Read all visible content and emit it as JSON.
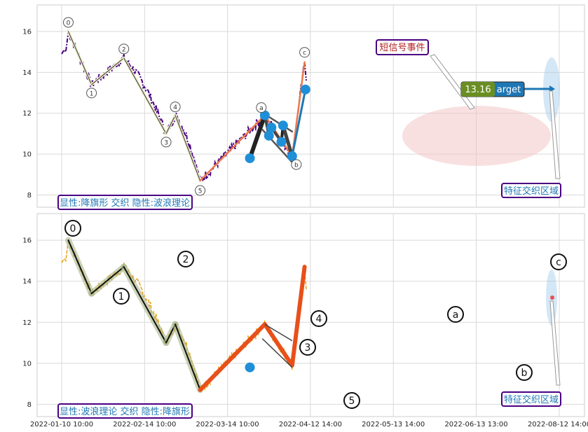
{
  "chart_data": {
    "type": "line",
    "x_ticks": [
      "2022-01-10 10:00",
      "2022-02-14 10:00",
      "2022-03-14 10:00",
      "2022-04-12 14:00",
      "2022-05-13 14:00",
      "2022-06-13 13:00",
      "2022-08-12 14:00"
    ],
    "panels": [
      {
        "name": "top",
        "ylim": [
          7.4,
          17.3
        ],
        "yticks": [
          8,
          10,
          12,
          14,
          16
        ],
        "grid": true,
        "price_color": "#4b0082",
        "legend_text": "显性:降旗形 交织 隐性:波浪理论",
        "wave_points": [
          {
            "label": "0",
            "x": 0.08,
            "y": 16.0
          },
          {
            "label": "1",
            "x": 0.36,
            "y": 13.4
          },
          {
            "label": "2",
            "x": 0.75,
            "y": 14.7
          },
          {
            "label": "3",
            "x": 1.26,
            "y": 11.0
          },
          {
            "label": "4",
            "x": 1.37,
            "y": 11.9
          },
          {
            "label": "5",
            "x": 1.67,
            "y": 8.7
          },
          {
            "label": "a",
            "x": 2.45,
            "y": 11.9
          },
          {
            "label": "b",
            "x": 2.78,
            "y": 9.9
          },
          {
            "label": "c",
            "x": 2.93,
            "y": 14.5
          }
        ],
        "annotations": [
          {
            "text": "短信号事件",
            "color": "#b22222"
          },
          {
            "text": "特征交织区域",
            "color": "#1f77b4"
          },
          {
            "text": "13.16",
            "color": "#ffffff",
            "bg": "#6b8e23"
          },
          {
            "text": "arget",
            "color": "#ffffff",
            "bg": "#1f77b4"
          }
        ],
        "target_value": 13.16
      },
      {
        "name": "bottom",
        "ylim": [
          7.4,
          17.3
        ],
        "yticks": [
          8,
          10,
          12,
          14,
          16
        ],
        "grid": true,
        "price_color": "#e8a317",
        "legend_text": "显性:波浪理论 交织 隐性:降旗形",
        "wave_points": [
          {
            "label": "0",
            "x": 0.08,
            "y": 16.0
          },
          {
            "label": "1",
            "x": 0.36,
            "y": 13.4
          },
          {
            "label": "2",
            "x": 0.75,
            "y": 14.7
          },
          {
            "label": "3",
            "x": 1.26,
            "y": 11.0
          },
          {
            "label": "4",
            "x": 1.37,
            "y": 11.9
          },
          {
            "label": "5",
            "x": 1.67,
            "y": 8.7
          },
          {
            "label": "a",
            "x": 2.45,
            "y": 11.9
          },
          {
            "label": "b",
            "x": 2.78,
            "y": 9.9
          },
          {
            "label": "c",
            "x": 2.93,
            "y": 14.7
          }
        ],
        "annotations": [
          {
            "text": "特征交织区域",
            "color": "#1f77b4"
          }
        ]
      }
    ],
    "flag_points": [
      {
        "x": 2.27,
        "y": 9.8
      },
      {
        "x": 2.45,
        "y": 11.9
      },
      {
        "x": 2.5,
        "y": 10.9
      },
      {
        "x": 2.53,
        "y": 11.3
      },
      {
        "x": 2.65,
        "y": 10.6
      },
      {
        "x": 2.67,
        "y": 11.4
      },
      {
        "x": 2.78,
        "y": 9.9
      },
      {
        "x": 2.94,
        "y": 13.16
      }
    ]
  }
}
